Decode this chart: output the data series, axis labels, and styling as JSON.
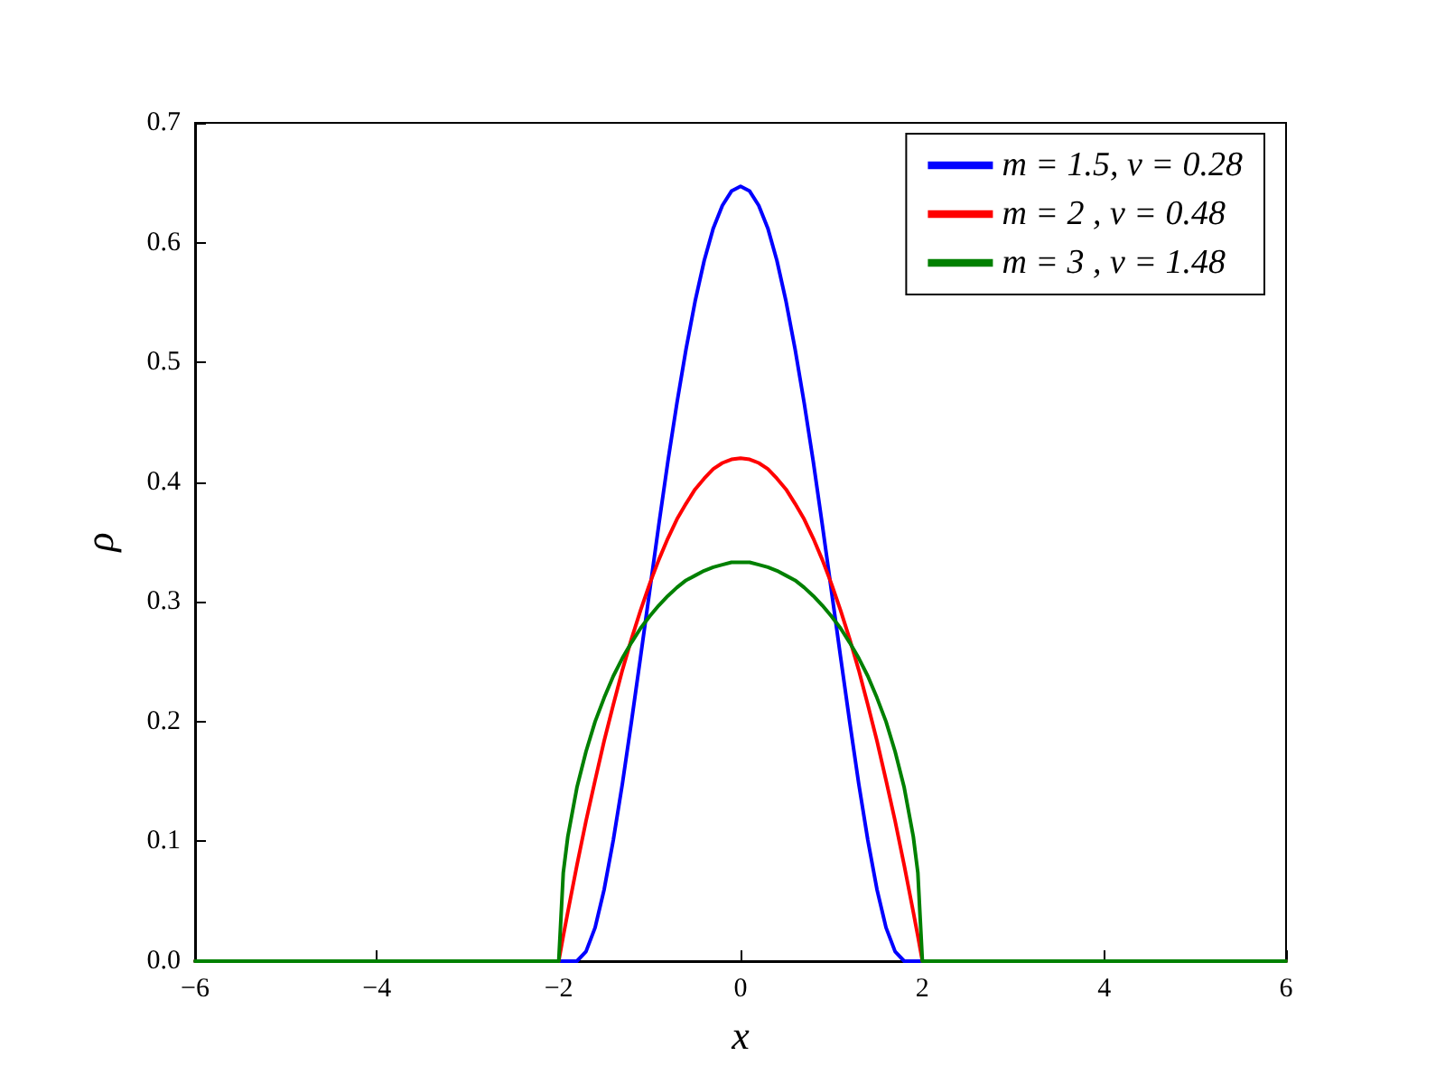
{
  "chart_data": {
    "type": "line",
    "xlabel": "x",
    "ylabel": "ρ",
    "x": [
      -6,
      -2,
      -1.95,
      -1.9,
      -1.8,
      -1.7,
      -1.6,
      -1.5,
      -1.4,
      -1.3,
      -1.2,
      -1.1,
      -1,
      -0.9,
      -0.8,
      -0.7,
      -0.6,
      -0.5,
      -0.4,
      -0.3,
      -0.2,
      -0.1,
      0,
      0.1,
      0.2,
      0.3,
      0.4,
      0.5,
      0.6,
      0.7,
      0.8,
      0.9,
      1,
      1.1,
      1.2,
      1.3,
      1.4,
      1.5,
      1.6,
      1.7,
      1.8,
      1.9,
      1.95,
      2,
      6
    ],
    "series": [
      {
        "name": "m = 1.5, ν = 0.28",
        "color": "#0000ff",
        "values": [
          0,
          0,
          0,
          0,
          0,
          0.008,
          0.028,
          0.06,
          0.101,
          0.148,
          0.2,
          0.254,
          0.309,
          0.364,
          0.417,
          0.466,
          0.511,
          0.551,
          0.585,
          0.612,
          0.631,
          0.643,
          0.647,
          0.643,
          0.631,
          0.612,
          0.585,
          0.551,
          0.511,
          0.466,
          0.417,
          0.364,
          0.309,
          0.254,
          0.2,
          0.148,
          0.101,
          0.06,
          0.028,
          0.008,
          0,
          0,
          0,
          0,
          0
        ]
      },
      {
        "name": "m = 2 , ν = 0.48",
        "color": "#ff0000",
        "values": [
          0,
          0,
          0.021,
          0.041,
          0.08,
          0.117,
          0.151,
          0.184,
          0.214,
          0.243,
          0.269,
          0.293,
          0.315,
          0.335,
          0.353,
          0.369,
          0.382,
          0.394,
          0.403,
          0.411,
          0.416,
          0.419,
          0.42,
          0.419,
          0.416,
          0.411,
          0.403,
          0.394,
          0.382,
          0.369,
          0.353,
          0.335,
          0.315,
          0.293,
          0.269,
          0.243,
          0.214,
          0.184,
          0.151,
          0.117,
          0.08,
          0.041,
          0.021,
          0,
          0
        ]
      },
      {
        "name": "m = 3 , ν = 1.48",
        "color": "#008000",
        "values": [
          0,
          0,
          0.074,
          0.104,
          0.145,
          0.175,
          0.2,
          0.22,
          0.238,
          0.253,
          0.266,
          0.278,
          0.288,
          0.297,
          0.305,
          0.312,
          0.318,
          0.322,
          0.326,
          0.329,
          0.331,
          0.333,
          0.333,
          0.333,
          0.331,
          0.329,
          0.326,
          0.322,
          0.318,
          0.312,
          0.305,
          0.297,
          0.288,
          0.278,
          0.266,
          0.253,
          0.238,
          0.22,
          0.2,
          0.175,
          0.145,
          0.104,
          0.074,
          0,
          0
        ]
      }
    ],
    "xlim": [
      -6,
      6
    ],
    "xticks": [
      {
        "value": -6,
        "label": "−6"
      },
      {
        "value": -4,
        "label": "−4"
      },
      {
        "value": -2,
        "label": "−2"
      },
      0,
      2,
      4,
      6
    ],
    "ylim": [
      0,
      0.7
    ],
    "yticks": [
      {
        "value": 0,
        "label": "0.0"
      },
      0.1,
      0.2,
      0.3,
      0.4,
      0.5,
      0.6,
      0.7
    ],
    "legend": "top right",
    "grid": false,
    "marker": "none",
    "line_style": "solid"
  }
}
